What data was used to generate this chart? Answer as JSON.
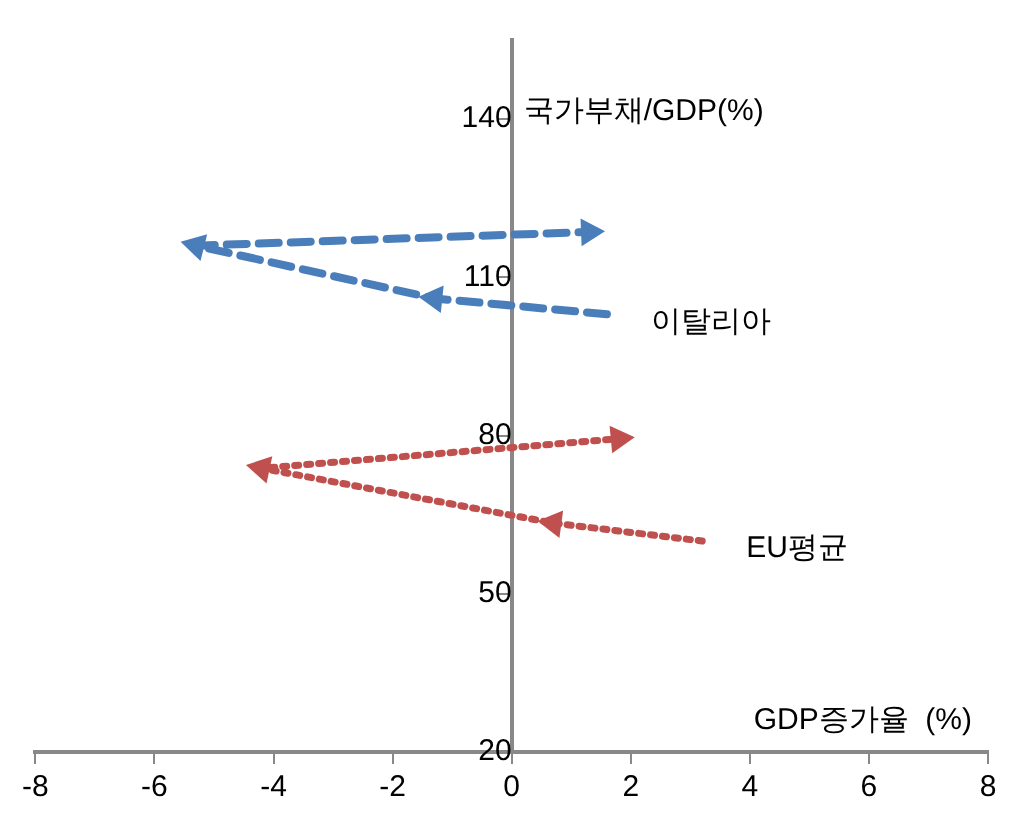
{
  "chart_data": {
    "type": "line",
    "xlabel": "GDP증가율  (%)",
    "ylabel": "국가부채/GDP(%)",
    "xlim": [
      -8,
      8
    ],
    "xticks": [
      -8,
      -6,
      -4,
      -2,
      0,
      2,
      4,
      6,
      8
    ],
    "ylim": [
      20,
      155
    ],
    "yticks": [
      20,
      50,
      80,
      110,
      140
    ],
    "grid": false,
    "legend": false,
    "marker": "triangle",
    "series": [
      {
        "name": "이탈리아",
        "color": "#4a7ebb",
        "line_style": "dashed",
        "x": [
          1.6,
          -1.3,
          -5.3,
          1.3
        ],
        "values": [
          103,
          106,
          116,
          118.6
        ]
      },
      {
        "name": "EU평균",
        "color": "#c0504d",
        "line_style": "dotted",
        "x": [
          3.2,
          0.7,
          -4.2,
          1.8
        ],
        "values": [
          60,
          63.4,
          73.8,
          79.4
        ]
      }
    ]
  }
}
